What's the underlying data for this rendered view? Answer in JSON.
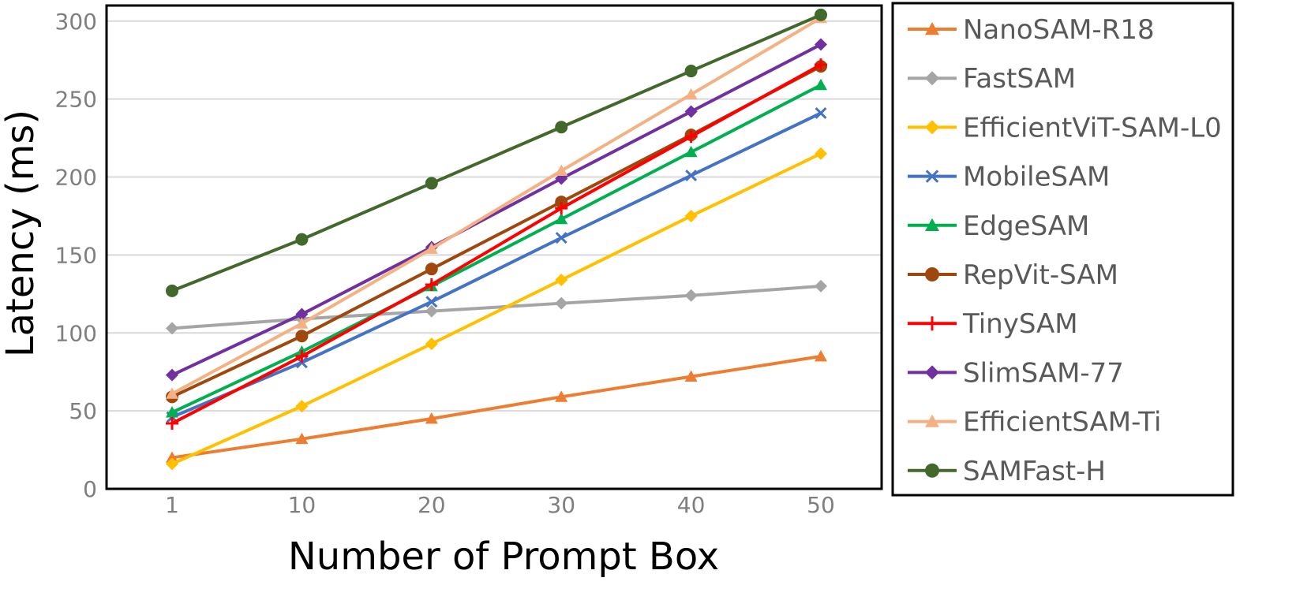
{
  "chart_data": {
    "type": "line",
    "title": "",
    "xlabel": "Number of Prompt Box",
    "ylabel": "Latency (ms)",
    "categories": [
      "1",
      "10",
      "20",
      "30",
      "40",
      "50"
    ],
    "yticks": [
      "0",
      "50",
      "100",
      "150",
      "200",
      "250",
      "300"
    ],
    "ylim": [
      0,
      310
    ],
    "grid": true,
    "legend_position": "right",
    "series": [
      {
        "name": "NanoSAM-R18",
        "color": "#ED7D31",
        "marker": "triangle",
        "values": [
          20,
          32,
          45,
          59,
          72,
          85
        ]
      },
      {
        "name": "FastSAM",
        "color": "#A5A5A5",
        "marker": "diamond",
        "values": [
          103,
          109,
          114,
          119,
          124,
          130
        ]
      },
      {
        "name": "EfficientViT-SAM-L0",
        "color": "#FFC000",
        "marker": "diamond",
        "values": [
          16,
          53,
          93,
          134,
          175,
          215
        ]
      },
      {
        "name": "MobileSAM",
        "color": "#4472C4",
        "marker": "x",
        "values": [
          46,
          81,
          120,
          161,
          201,
          241
        ]
      },
      {
        "name": "EdgeSAM",
        "color": "#00B050",
        "marker": "triangle",
        "values": [
          49,
          88,
          130,
          173,
          216,
          259
        ]
      },
      {
        "name": "RepVit-SAM",
        "color": "#9E480E",
        "marker": "circle",
        "values": [
          59,
          98,
          141,
          184,
          227,
          271
        ]
      },
      {
        "name": "TinySAM",
        "color": "#FF0000",
        "marker": "plus",
        "values": [
          42,
          85,
          131,
          180,
          226,
          272
        ]
      },
      {
        "name": "SlimSAM-77",
        "color": "#7030A0",
        "marker": "diamond",
        "values": [
          73,
          112,
          155,
          199,
          242,
          285
        ]
      },
      {
        "name": "EfficientSAM-Ti",
        "color": "#F4B183",
        "marker": "triangle",
        "values": [
          61,
          106,
          154,
          204,
          253,
          302
        ]
      },
      {
        "name": "SAMFast-H",
        "color": "#43682B",
        "marker": "circle",
        "values": [
          127,
          160,
          196,
          232,
          268,
          304
        ]
      }
    ]
  }
}
